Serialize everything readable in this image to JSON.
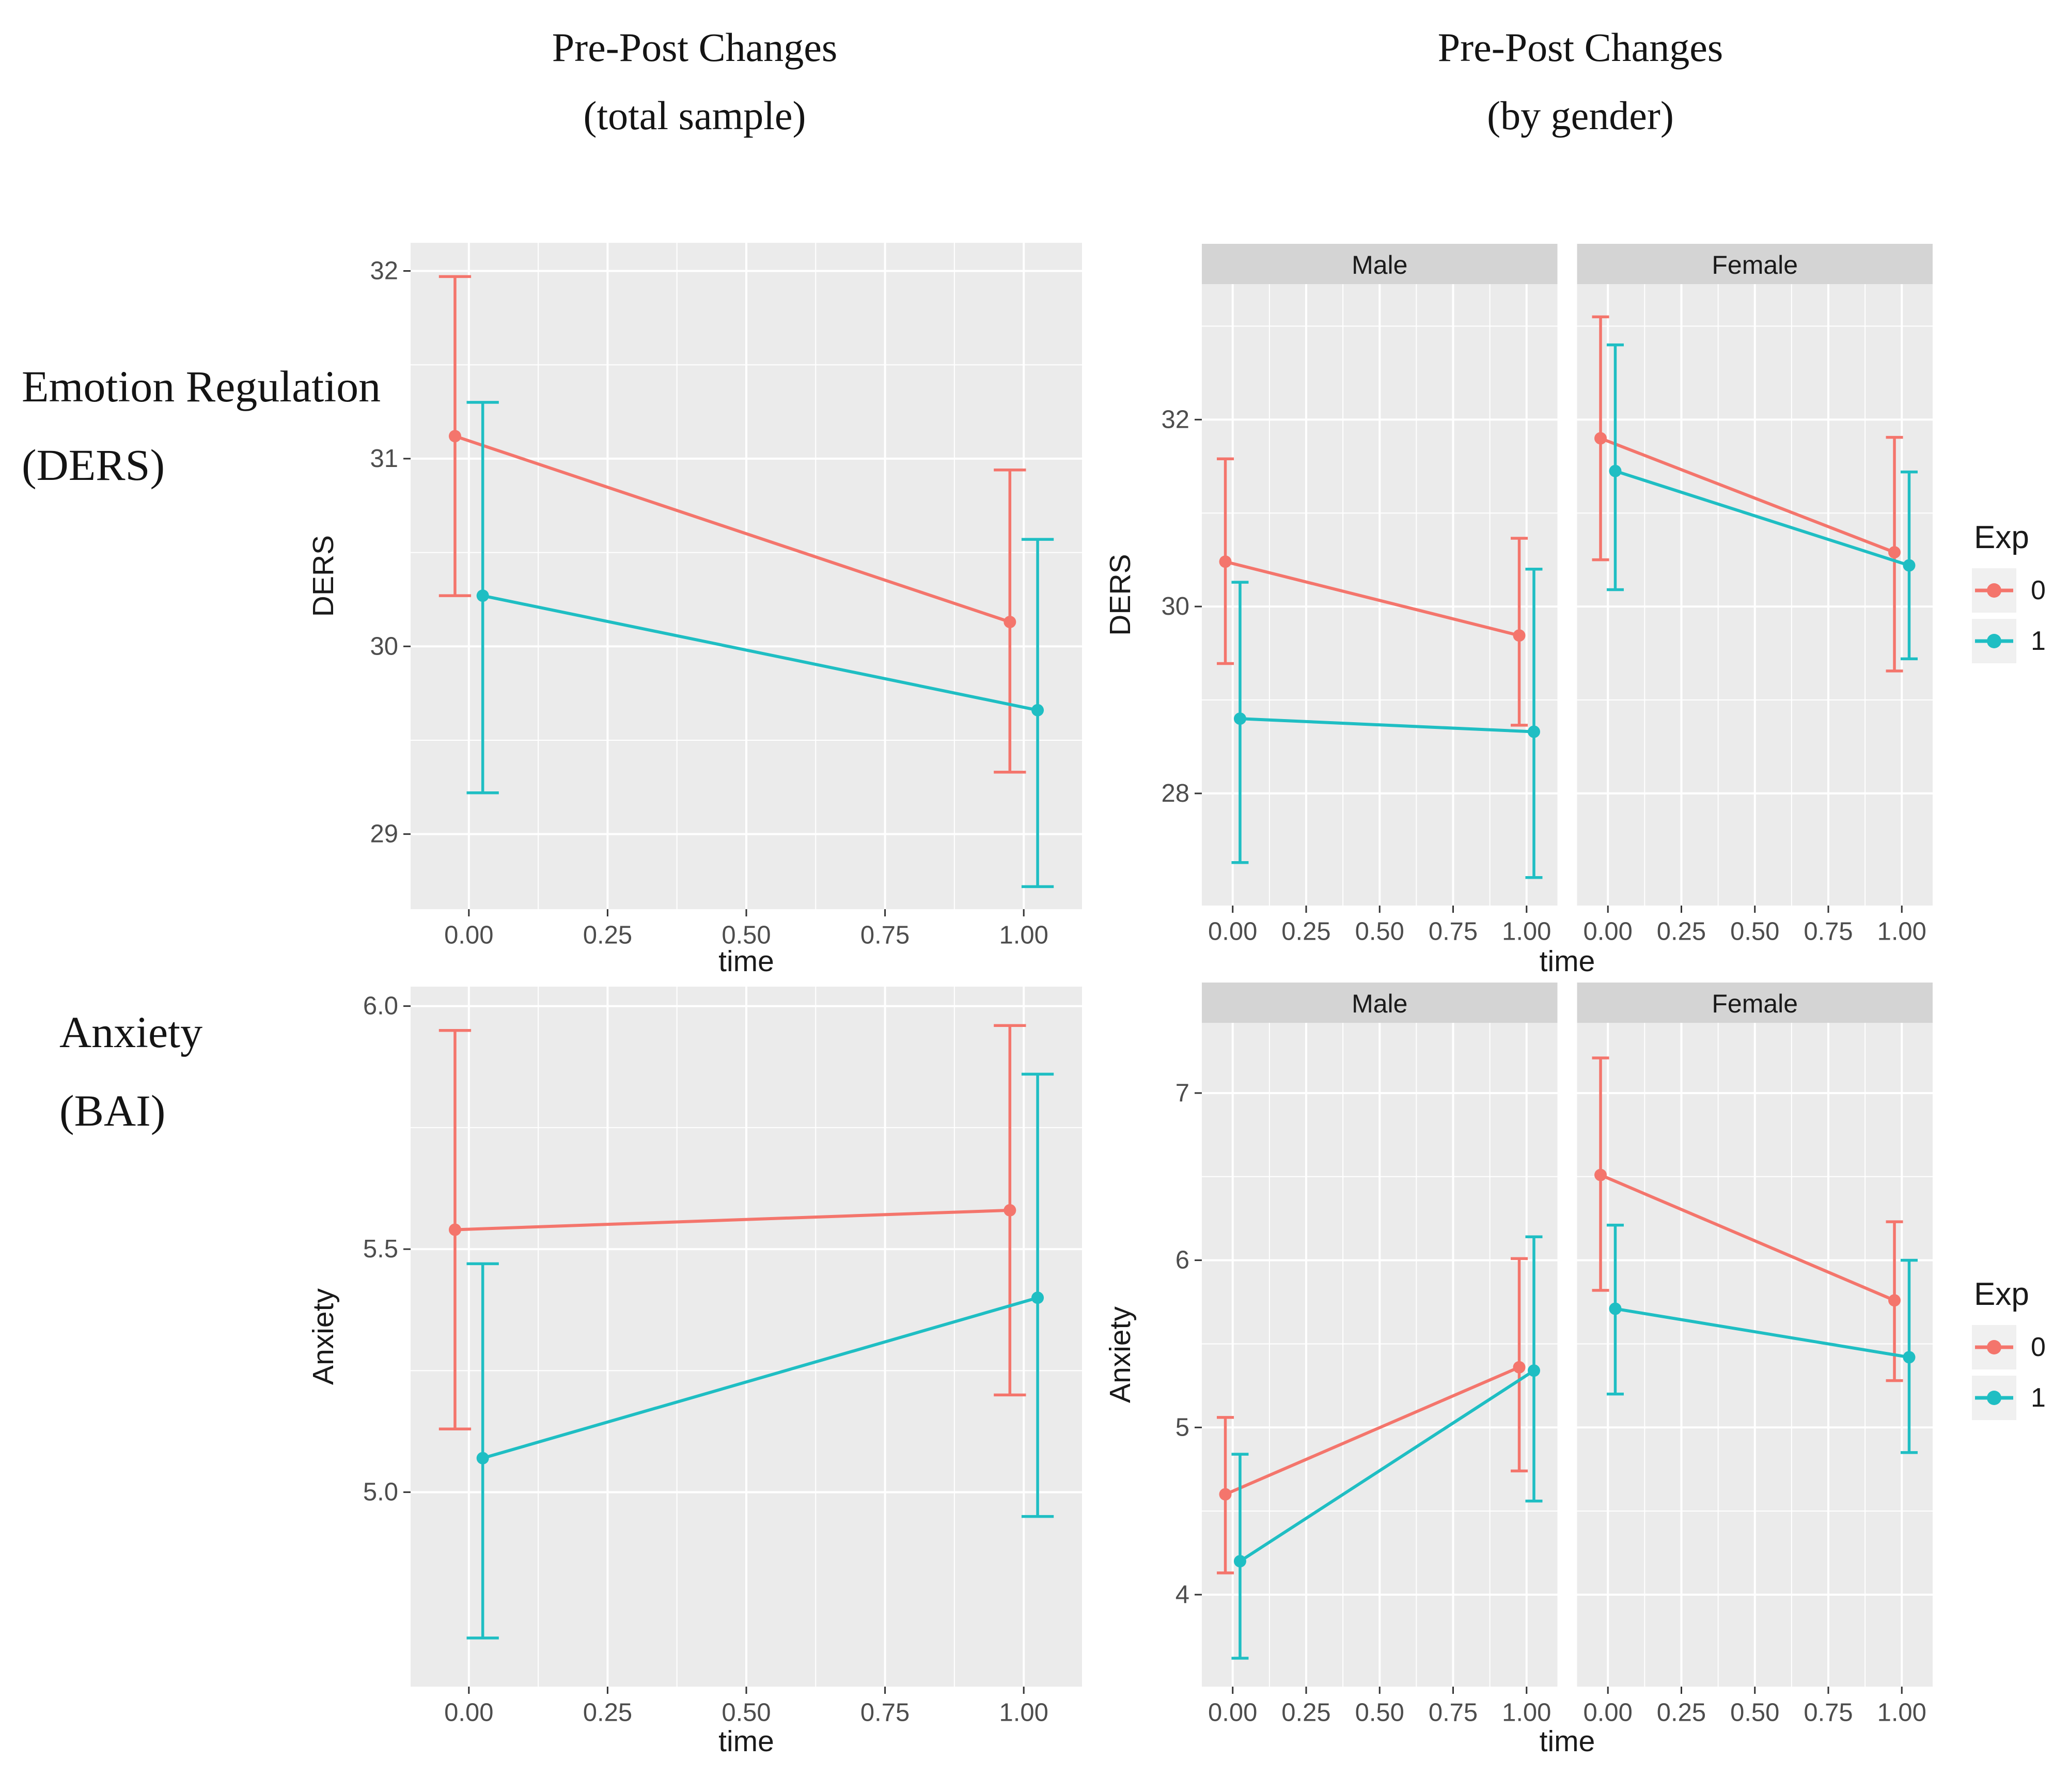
{
  "figure": {
    "column_titles": [
      {
        "line1": "Pre-Post Changes",
        "line2": "(total sample)"
      },
      {
        "line1": "Pre-Post Changes",
        "line2": "(by gender)"
      }
    ],
    "row_labels": [
      {
        "line1": "Emotion Regulation",
        "line2": "(DERS)"
      },
      {
        "line1": "Anxiety",
        "line2": "(BAI)"
      }
    ]
  },
  "palette": {
    "exp0": "#F4756C",
    "exp1": "#1FBEC3",
    "panel_bg": "#EBEBEB",
    "grid": "#FFFFFF",
    "strip_bg": "#D4D4D4",
    "strip_text": "#1A1A1A",
    "tick_mark": "#333333",
    "tick_text": "#4D4D4D",
    "axis_title_text": "#1A1A1A",
    "legend_key_bg": "#F0F0F0"
  },
  "legend": {
    "title": "Exp",
    "items": [
      {
        "label": "0",
        "color": "#F4756C"
      },
      {
        "label": "1",
        "color": "#1FBEC3"
      }
    ]
  },
  "chart_data": [
    {
      "name": "ders-total-sample",
      "type": "line",
      "xlabel": "time",
      "ylabel": "DERS",
      "xlim": [
        -0.105,
        1.105
      ],
      "ylim": [
        28.6,
        32.15
      ],
      "xticks": [
        0,
        0.25,
        0.5,
        0.75,
        1
      ],
      "xtick_labels": [
        "0.00",
        "0.25",
        "0.50",
        "0.75",
        "1.00"
      ],
      "yticks": [
        29,
        30,
        31,
        32
      ],
      "ytick_labels": [
        "29",
        "30",
        "31",
        "32"
      ],
      "show_legend": false,
      "facets": [
        {
          "label": null,
          "series": [
            {
              "name": "0",
              "color": "#F4756C",
              "points": [
                {
                  "x": 0,
                  "y": 31.12,
                  "lo": 30.27,
                  "hi": 31.97
                },
                {
                  "x": 1,
                  "y": 30.13,
                  "lo": 29.33,
                  "hi": 30.94
                }
              ]
            },
            {
              "name": "1",
              "color": "#1FBEC3",
              "points": [
                {
                  "x": 0,
                  "y": 30.27,
                  "lo": 29.22,
                  "hi": 31.3
                },
                {
                  "x": 1,
                  "y": 29.66,
                  "lo": 28.72,
                  "hi": 30.57
                }
              ]
            }
          ]
        }
      ]
    },
    {
      "name": "ders-by-gender",
      "type": "line",
      "xlabel": "time",
      "ylabel": "DERS",
      "xlim": [
        -0.105,
        1.105
      ],
      "ylim": [
        26.8,
        33.45
      ],
      "xticks": [
        0,
        0.25,
        0.5,
        0.75,
        1
      ],
      "xtick_labels": [
        "0.00",
        "0.25",
        "0.50",
        "0.75",
        "1.00"
      ],
      "yticks": [
        28,
        30,
        32
      ],
      "ytick_labels": [
        "28",
        "30",
        "32"
      ],
      "show_legend": true,
      "facets": [
        {
          "label": "Male",
          "series": [
            {
              "name": "0",
              "color": "#F4756C",
              "points": [
                {
                  "x": 0,
                  "y": 30.48,
                  "lo": 29.39,
                  "hi": 31.58
                },
                {
                  "x": 1,
                  "y": 29.69,
                  "lo": 28.73,
                  "hi": 30.73
                }
              ]
            },
            {
              "name": "1",
              "color": "#1FBEC3",
              "points": [
                {
                  "x": 0,
                  "y": 28.8,
                  "lo": 27.26,
                  "hi": 30.26
                },
                {
                  "x": 1,
                  "y": 28.66,
                  "lo": 27.1,
                  "hi": 30.4
                }
              ]
            }
          ]
        },
        {
          "label": "Female",
          "series": [
            {
              "name": "0",
              "color": "#F4756C",
              "points": [
                {
                  "x": 0,
                  "y": 31.8,
                  "lo": 30.5,
                  "hi": 33.1
                },
                {
                  "x": 1,
                  "y": 30.58,
                  "lo": 29.31,
                  "hi": 31.81
                }
              ]
            },
            {
              "name": "1",
              "color": "#1FBEC3",
              "points": [
                {
                  "x": 0,
                  "y": 31.45,
                  "lo": 30.18,
                  "hi": 32.8
                },
                {
                  "x": 1,
                  "y": 30.44,
                  "lo": 29.44,
                  "hi": 31.44
                }
              ]
            }
          ]
        }
      ]
    },
    {
      "name": "anxiety-total-sample",
      "type": "line",
      "xlabel": "time",
      "ylabel": "Anxiety",
      "xlim": [
        -0.105,
        1.105
      ],
      "ylim": [
        4.6,
        6.04
      ],
      "xticks": [
        0,
        0.25,
        0.5,
        0.75,
        1
      ],
      "xtick_labels": [
        "0.00",
        "0.25",
        "0.50",
        "0.75",
        "1.00"
      ],
      "yticks": [
        5.0,
        5.5,
        6.0
      ],
      "ytick_labels": [
        "5.0",
        "5.5",
        "6.0"
      ],
      "show_legend": false,
      "facets": [
        {
          "label": null,
          "series": [
            {
              "name": "0",
              "color": "#F4756C",
              "points": [
                {
                  "x": 0,
                  "y": 5.54,
                  "lo": 5.13,
                  "hi": 5.95
                },
                {
                  "x": 1,
                  "y": 5.58,
                  "lo": 5.2,
                  "hi": 5.96
                }
              ]
            },
            {
              "name": "1",
              "color": "#1FBEC3",
              "points": [
                {
                  "x": 0,
                  "y": 5.07,
                  "lo": 4.7,
                  "hi": 5.47
                },
                {
                  "x": 1,
                  "y": 5.4,
                  "lo": 4.95,
                  "hi": 5.86
                }
              ]
            }
          ]
        }
      ]
    },
    {
      "name": "anxiety-by-gender",
      "type": "line",
      "xlabel": "time",
      "ylabel": "Anxiety",
      "xlim": [
        -0.105,
        1.105
      ],
      "ylim": [
        3.45,
        7.42
      ],
      "xticks": [
        0,
        0.25,
        0.5,
        0.75,
        1
      ],
      "xtick_labels": [
        "0.00",
        "0.25",
        "0.50",
        "0.75",
        "1.00"
      ],
      "yticks": [
        4,
        5,
        6,
        7
      ],
      "ytick_labels": [
        "4",
        "5",
        "6",
        "7"
      ],
      "show_legend": true,
      "facets": [
        {
          "label": "Male",
          "series": [
            {
              "name": "0",
              "color": "#F4756C",
              "points": [
                {
                  "x": 0,
                  "y": 4.6,
                  "lo": 4.13,
                  "hi": 5.06
                },
                {
                  "x": 1,
                  "y": 5.36,
                  "lo": 4.74,
                  "hi": 6.01
                }
              ]
            },
            {
              "name": "1",
              "color": "#1FBEC3",
              "points": [
                {
                  "x": 0,
                  "y": 4.2,
                  "lo": 3.62,
                  "hi": 4.84
                },
                {
                  "x": 1,
                  "y": 5.34,
                  "lo": 4.56,
                  "hi": 6.14
                }
              ]
            }
          ]
        },
        {
          "label": "Female",
          "series": [
            {
              "name": "0",
              "color": "#F4756C",
              "points": [
                {
                  "x": 0,
                  "y": 6.51,
                  "lo": 5.82,
                  "hi": 7.21
                },
                {
                  "x": 1,
                  "y": 5.76,
                  "lo": 5.28,
                  "hi": 6.23
                }
              ]
            },
            {
              "name": "1",
              "color": "#1FBEC3",
              "points": [
                {
                  "x": 0,
                  "y": 5.71,
                  "lo": 5.2,
                  "hi": 6.21
                },
                {
                  "x": 1,
                  "y": 5.42,
                  "lo": 4.85,
                  "hi": 6.0
                }
              ]
            }
          ]
        }
      ]
    }
  ]
}
